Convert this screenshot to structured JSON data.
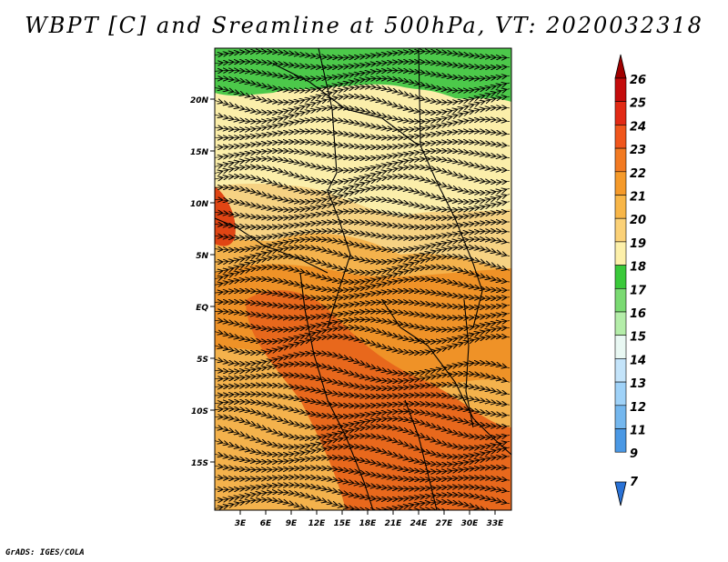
{
  "title": "WBPT [C] and Sreamline at 500hPa, VT: 2020032318",
  "credit": "GrADS: IGES/COLA",
  "map": {
    "lat_labels": [
      "20N",
      "15N",
      "10N",
      "5N",
      "EQ",
      "5S",
      "10S",
      "15S"
    ],
    "lon_labels": [
      "3E",
      "6E",
      "9E",
      "12E",
      "15E",
      "18E",
      "21E",
      "24E",
      "27E",
      "30E",
      "33E"
    ],
    "colors": {
      "land_green": "#4cc94a",
      "light_yellow": "#fbeeaa",
      "tan": "#f6d283",
      "orange_light": "#f4b24c",
      "orange": "#ef9227",
      "orange_dark": "#e8681c",
      "red_orange": "#e04514",
      "streamline": "#000000"
    }
  },
  "colorbar": {
    "labels": [
      "26",
      "25",
      "24",
      "23",
      "22",
      "21",
      "20",
      "19",
      "18",
      "17",
      "16",
      "15",
      "14",
      "13",
      "12",
      "11",
      "9",
      "7"
    ],
    "colors": [
      "#a00000",
      "#c40c0c",
      "#e22a15",
      "#f0561c",
      "#f27a22",
      "#f59a2a",
      "#f8b648",
      "#fbd177",
      "#fdf0aa",
      "#3ac93a",
      "#7ada72",
      "#b4eda9",
      "#e9f8f3",
      "#c4e4fa",
      "#9fd2f8",
      "#74b7ee",
      "#4a98e4",
      "#2a72d6"
    ]
  }
}
